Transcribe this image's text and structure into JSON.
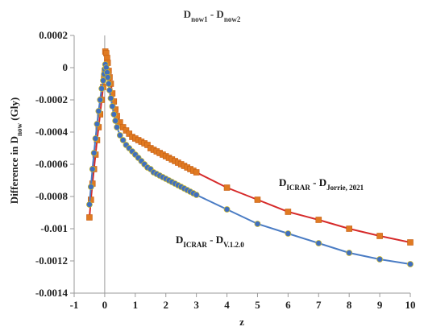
{
  "chart_data": {
    "type": "line",
    "title_main": "D",
    "title_sub1": "now1",
    "title_sep": " - ",
    "title_main2": "D",
    "title_sub2": "now2",
    "ylabel_main": "Difference in D",
    "ylabel_sub": "now",
    "ylabel_unit": " (Gly)",
    "xlabel": "z",
    "xlim": [
      -1,
      10
    ],
    "ylim": [
      -0.0014,
      0.0002
    ],
    "x_ticks": [
      -1,
      0,
      1,
      2,
      3,
      4,
      5,
      6,
      7,
      8,
      9,
      10
    ],
    "x_tick_labels": [
      "-1",
      "0",
      "1",
      "2",
      "3",
      "4",
      "5",
      "6",
      "7",
      "8",
      "9",
      "10"
    ],
    "y_ticks": [
      0.0002,
      0,
      -0.0002,
      -0.0004,
      -0.0006,
      -0.0008,
      -0.001,
      -0.0012,
      -0.0014
    ],
    "y_tick_labels": [
      "0.0002",
      "0",
      "-0.0002",
      "-0.0004",
      "-0.0006",
      "-0.0008",
      "-0.001",
      "-0.0012",
      "-0.0014"
    ],
    "grid": {
      "vertical_at_zero": true,
      "horizontal": false
    },
    "annotations": [
      {
        "main": "D",
        "sub1": "ICRAR",
        "sep": " - ",
        "main2": "D",
        "sub2": "Jorrie, 2021",
        "anchor_x": 6.2,
        "anchor_y": -0.00075
      },
      {
        "main": "D",
        "sub1": "ICRAR",
        "sep": " - ",
        "main2": "D",
        "sub2": "V.1.2.0",
        "anchor_x": 2.3,
        "anchor_y": -0.00096
      }
    ],
    "series": [
      {
        "color": "#d62a2a",
        "marker_color": "#e07a22",
        "marker": "square",
        "x": [
          -0.5,
          -0.45,
          -0.4,
          -0.35,
          -0.3,
          -0.25,
          -0.2,
          -0.15,
          -0.1,
          -0.05,
          -0.02,
          0,
          0.02,
          0.05,
          0.08,
          0.1,
          0.13,
          0.16,
          0.2,
          0.25,
          0.3,
          0.35,
          0.4,
          0.5,
          0.6,
          0.7,
          0.8,
          0.9,
          1.0,
          1.1,
          1.2,
          1.3,
          1.4,
          1.5,
          1.6,
          1.7,
          1.8,
          1.9,
          2.0,
          2.1,
          2.2,
          2.3,
          2.4,
          2.5,
          2.6,
          2.7,
          2.8,
          2.9,
          3.0,
          4,
          5,
          6,
          7,
          8,
          9,
          10
        ],
        "y": [
          -0.00093,
          -0.00082,
          -0.00072,
          -0.00063,
          -0.00054,
          -0.00045,
          -0.00037,
          -0.00029,
          -0.0002,
          -0.00012,
          -6e-05,
          -2e-05,
          0.0001,
          9e-05,
          6e-05,
          3e-05,
          -2e-05,
          -6e-05,
          -0.0001,
          -0.00016,
          -0.00021,
          -0.00026,
          -0.0003,
          -0.00034,
          -0.00037,
          -0.00039,
          -0.00041,
          -0.00043,
          -0.00044,
          -0.00045,
          -0.00046,
          -0.00047,
          -0.00048,
          -0.0005,
          -0.00051,
          -0.00052,
          -0.00053,
          -0.00054,
          -0.00055,
          -0.00056,
          -0.00057,
          -0.00058,
          -0.00059,
          -0.0006,
          -0.00061,
          -0.00062,
          -0.00063,
          -0.00064,
          -0.00065,
          -0.000745,
          -0.00082,
          -0.000895,
          -0.000945,
          -0.001,
          -0.001045,
          -0.001085
        ]
      },
      {
        "color": "#4a7cc4",
        "marker_color": "#3f6fbf",
        "marker": "circle",
        "x": [
          -0.5,
          -0.45,
          -0.4,
          -0.35,
          -0.3,
          -0.25,
          -0.2,
          -0.15,
          -0.1,
          -0.05,
          -0.02,
          0,
          0.02,
          0.05,
          0.08,
          0.1,
          0.13,
          0.16,
          0.2,
          0.25,
          0.3,
          0.35,
          0.4,
          0.5,
          0.6,
          0.7,
          0.8,
          0.9,
          1.0,
          1.1,
          1.2,
          1.3,
          1.4,
          1.5,
          1.6,
          1.7,
          1.8,
          1.9,
          2.0,
          2.1,
          2.2,
          2.3,
          2.4,
          2.5,
          2.6,
          2.7,
          2.8,
          2.9,
          3.0,
          4,
          5,
          6,
          7,
          8,
          9,
          10
        ],
        "y": [
          -0.00085,
          -0.00074,
          -0.00063,
          -0.00053,
          -0.00044,
          -0.00035,
          -0.00027,
          -0.0002,
          -0.00013,
          -8e-05,
          -4e-05,
          -1e-05,
          2e-05,
          0.0,
          -3e-05,
          -6e-05,
          -0.0001,
          -0.00014,
          -0.00019,
          -0.00024,
          -0.00029,
          -0.00033,
          -0.00037,
          -0.00042,
          -0.00045,
          -0.00048,
          -0.0005,
          -0.00052,
          -0.00054,
          -0.00056,
          -0.00058,
          -0.0006,
          -0.00062,
          -0.00063,
          -0.00065,
          -0.00066,
          -0.00067,
          -0.00068,
          -0.00069,
          -0.0007,
          -0.00071,
          -0.00072,
          -0.00073,
          -0.00074,
          -0.00075,
          -0.00076,
          -0.00077,
          -0.00078,
          -0.00079,
          -0.00088,
          -0.00097,
          -0.00103,
          -0.00109,
          -0.00115,
          -0.00119,
          -0.00122
        ]
      }
    ]
  }
}
